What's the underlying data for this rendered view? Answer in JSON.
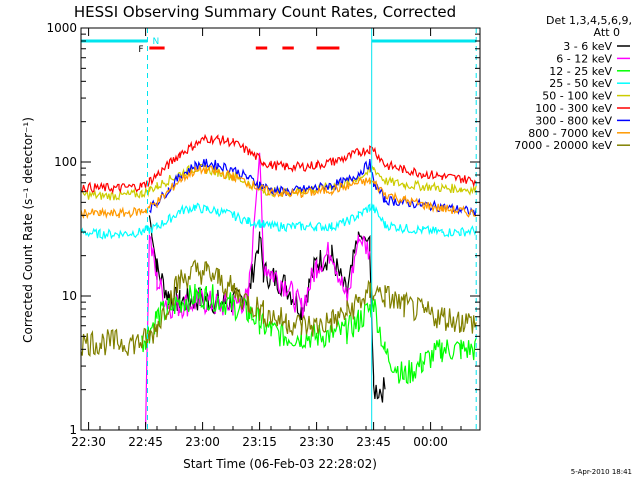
{
  "chart_data": {
    "type": "line",
    "title": "HESSI Observing Summary Count Rates, Corrected",
    "xlabel": "Start Time (06-Feb-03 22:28:02)",
    "ylabel": "Corrected Count Rate (s⁻¹ detector⁻¹)",
    "yscale": "log",
    "ylim": [
      1,
      1000
    ],
    "xlim_minutes": [
      0,
      105
    ],
    "x_tick_labels": [
      "22:30",
      "22:45",
      "23:00",
      "23:15",
      "23:30",
      "23:45",
      "00:00"
    ],
    "x_tick_minutes": [
      2,
      17,
      32,
      47,
      62,
      77,
      92
    ],
    "y_tick_labels": [
      "1",
      "10",
      "100",
      "1000"
    ],
    "y_tick_values": [
      1,
      10,
      100,
      1000
    ],
    "legend_header": [
      "Det 1,3,4,5,6,9,",
      "Att 0"
    ],
    "legend_placement": "right",
    "grid": false,
    "markers": {
      "F_label": "F",
      "N_label": "N",
      "night_intervals_minutes": [
        [
          0,
          17.5
        ],
        [
          76.5,
          104
        ]
      ],
      "saa_dashes_minutes": [
        [
          18,
          22
        ],
        [
          46,
          49
        ],
        [
          53,
          56
        ],
        [
          62,
          68
        ]
      ],
      "vertical_lines_minutes": [
        17.5,
        76.5,
        104
      ],
      "dashed_verticals_minutes": [
        17.5,
        104
      ]
    },
    "x": [
      0,
      5,
      10,
      16,
      17,
      18,
      20,
      23,
      26,
      30,
      33,
      36,
      40,
      44,
      47,
      48,
      50,
      54,
      58,
      62,
      66,
      70,
      73,
      76,
      77,
      80,
      85,
      90,
      95,
      100,
      104
    ],
    "series": [
      {
        "name": "3 - 6 keV",
        "color": "#000000",
        "values": [
          null,
          null,
          null,
          null,
          null,
          40,
          16,
          10,
          9,
          9.5,
          9.5,
          9,
          9,
          10,
          28,
          15,
          14,
          12,
          8,
          18,
          20,
          10,
          28,
          25,
          2,
          2,
          null,
          null,
          null,
          null,
          null
        ]
      },
      {
        "name": "6 - 12 keV",
        "color": "#ff00ff",
        "values": [
          null,
          null,
          null,
          null,
          1.3,
          28,
          13,
          8.5,
          8.5,
          9,
          9,
          8.5,
          8.5,
          9.5,
          120,
          18,
          15,
          12,
          8,
          17,
          22,
          9,
          27,
          22,
          null,
          null,
          null,
          null,
          null,
          null,
          null
        ]
      },
      {
        "name": "12 - 25 keV",
        "color": "#00ff00",
        "values": [
          null,
          null,
          null,
          4.5,
          5,
          5.5,
          7,
          8,
          9,
          10,
          10,
          9.5,
          8.5,
          7.5,
          6.5,
          6,
          5.5,
          5,
          5,
          5,
          5.2,
          5.5,
          6.5,
          8,
          9,
          3.8,
          2.5,
          3.2,
          4,
          4,
          4
        ]
      },
      {
        "name": "25 - 50 keV",
        "color": "#00ffff",
        "values": [
          30,
          29,
          29,
          30,
          31,
          31,
          33,
          37,
          43,
          46,
          44,
          43,
          40,
          36,
          35,
          34,
          33,
          33,
          33,
          33,
          33,
          36,
          40,
          46,
          45,
          34,
          32,
          31,
          30,
          30,
          31
        ]
      },
      {
        "name": "50 - 100 keV",
        "color": "#cccc00",
        "values": [
          57,
          56,
          56,
          58,
          60,
          62,
          66,
          73,
          82,
          90,
          88,
          84,
          78,
          70,
          63,
          62,
          60,
          60,
          61,
          63,
          66,
          70,
          77,
          85,
          90,
          72,
          68,
          66,
          64,
          63,
          62
        ]
      },
      {
        "name": "100 - 300 keV",
        "color": "#ff0000",
        "values": [
          65,
          64,
          64,
          66,
          68,
          72,
          80,
          95,
          115,
          135,
          150,
          148,
          140,
          120,
          105,
          100,
          95,
          92,
          92,
          95,
          100,
          108,
          118,
          125,
          125,
          95,
          88,
          82,
          78,
          75,
          72
        ]
      },
      {
        "name": "300 - 800 keV",
        "color": "#0000ff",
        "values": [
          null,
          null,
          null,
          null,
          null,
          45,
          50,
          62,
          78,
          94,
          98,
          95,
          88,
          76,
          68,
          66,
          62,
          60,
          62,
          64,
          67,
          72,
          82,
          98,
          70,
          52,
          50,
          48,
          46,
          44,
          42
        ]
      },
      {
        "name": "800 - 7000 keV",
        "color": "#ff9900",
        "values": [
          42,
          41,
          41,
          43,
          44,
          46,
          50,
          60,
          74,
          86,
          88,
          84,
          78,
          70,
          64,
          62,
          60,
          58,
          58,
          60,
          62,
          66,
          70,
          72,
          70,
          58,
          52,
          48,
          45,
          43,
          41
        ]
      },
      {
        "name": "7000 - 20000 keV",
        "color": "#808000",
        "values": [
          4.5,
          4.5,
          4.5,
          4.5,
          4.7,
          4.8,
          6,
          9,
          13,
          15.5,
          15,
          13.5,
          11,
          9,
          8,
          7.5,
          7,
          6.5,
          6,
          6,
          6.5,
          7.5,
          9,
          10.5,
          11,
          10,
          8.5,
          7.5,
          7,
          6.5,
          6.3
        ]
      }
    ]
  },
  "footer": {
    "timestamp": "5-Apr-2010 18:41"
  }
}
